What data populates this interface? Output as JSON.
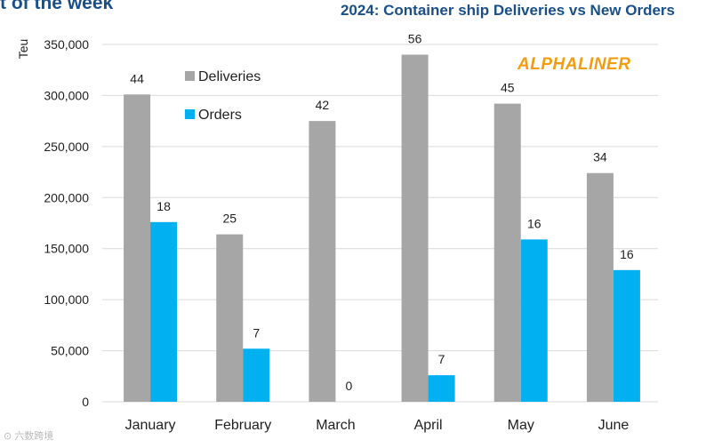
{
  "header": {
    "cropped_title": "t of the week",
    "chart_title": "2024: Container ship Deliveries vs New Orders",
    "brand": "ALPHALINER",
    "watermark": "六数跨境"
  },
  "colors": {
    "deliveries": "#a6a6a6",
    "orders": "#00b0f0",
    "grid": "#d9d9d9",
    "title": "#1a4f8a",
    "brand": "#f39c12",
    "text": "#1f1f1f"
  },
  "chart_data": {
    "type": "bar",
    "title": "2024: Container ship Deliveries vs New Orders",
    "xlabel": "",
    "ylabel": "Teu",
    "ylim": [
      0,
      350000
    ],
    "yticks": [
      0,
      50000,
      100000,
      150000,
      200000,
      250000,
      300000,
      350000
    ],
    "ytick_labels": [
      "0",
      "50,000",
      "100,000",
      "150,000",
      "200,000",
      "250,000",
      "300,000",
      "350,000"
    ],
    "grid": true,
    "legend_position": "top-left",
    "categories": [
      "January",
      "February",
      "March",
      "April",
      "May",
      "June"
    ],
    "series": [
      {
        "name": "Deliveries",
        "values": [
          301000,
          164000,
          275000,
          340000,
          292000,
          224000
        ],
        "labels": [
          "44",
          "25",
          "42",
          "56",
          "45",
          "34"
        ]
      },
      {
        "name": "Orders",
        "values": [
          176000,
          52000,
          0,
          26000,
          159000,
          129000
        ],
        "labels": [
          "18",
          "7",
          "0",
          "7",
          "16",
          "16"
        ]
      }
    ]
  }
}
